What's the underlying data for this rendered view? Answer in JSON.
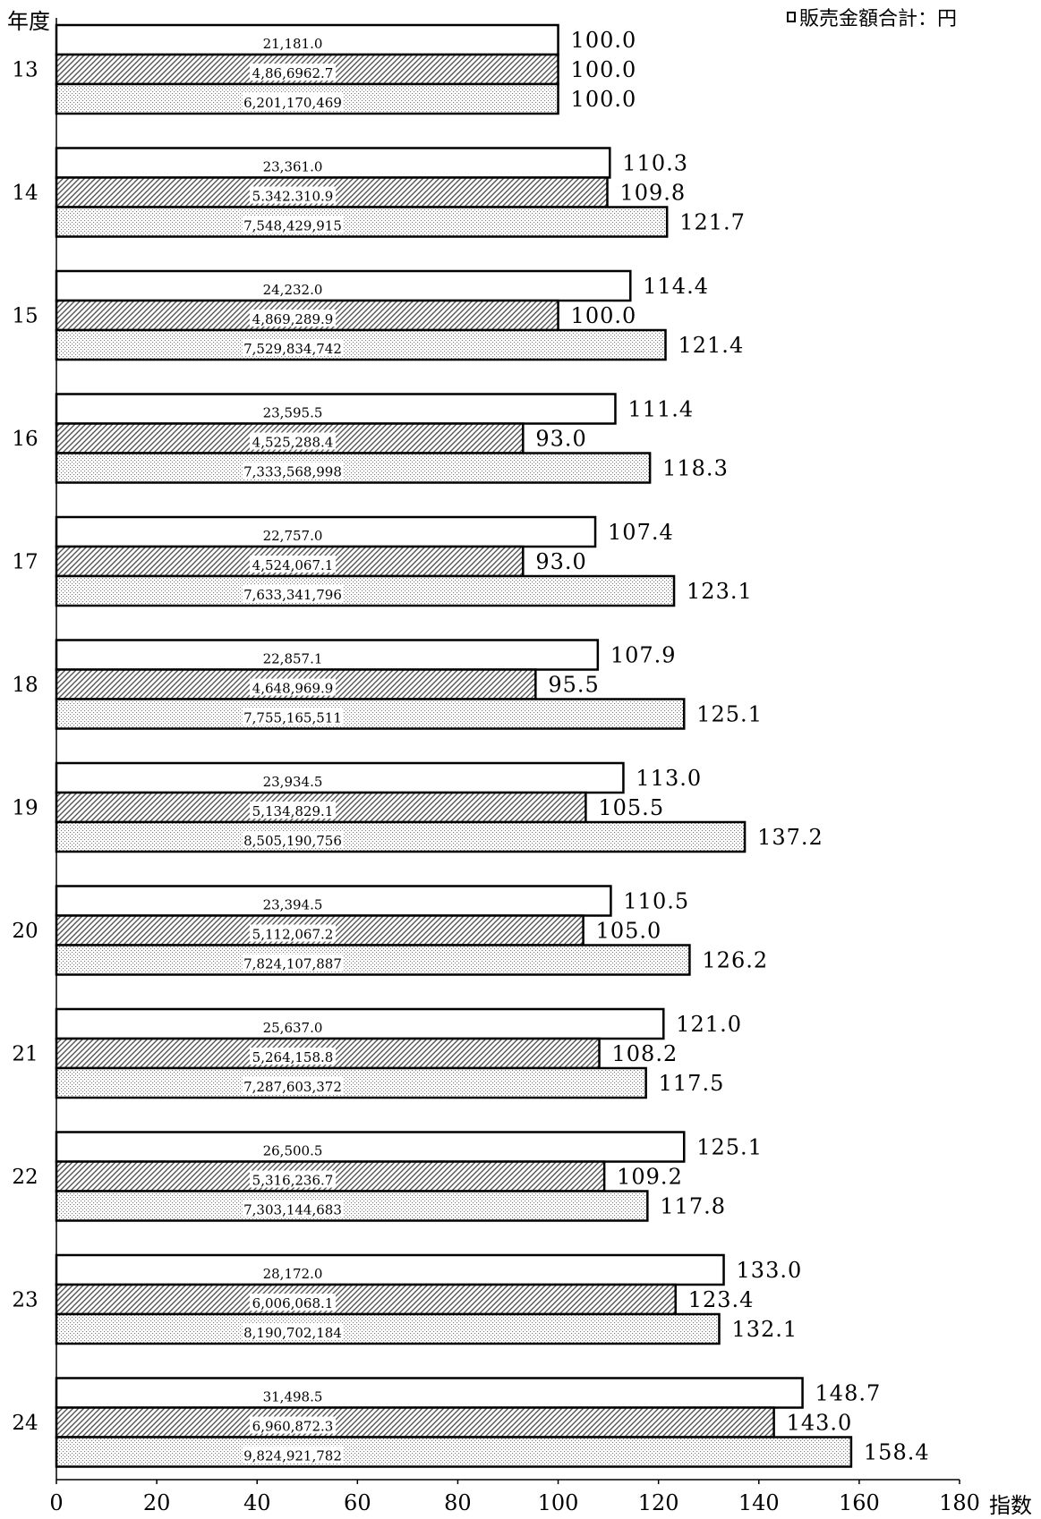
{
  "chart_data": {
    "type": "bar",
    "orientation": "horizontal",
    "title": "",
    "ylabel": "年度",
    "xlabel": "指数",
    "xlim": [
      0,
      180
    ],
    "xticks": [
      0,
      20,
      40,
      60,
      80,
      100,
      120,
      140,
      160,
      180
    ],
    "legend": {
      "position": "top-right",
      "entries": [
        "販売金額合計：円"
      ]
    },
    "categories": [
      "13",
      "14",
      "15",
      "16",
      "17",
      "18",
      "19",
      "20",
      "21",
      "22",
      "23",
      "24"
    ],
    "series": [
      {
        "fill": "white",
        "values": [
          100.0,
          110.3,
          114.4,
          111.4,
          107.4,
          107.9,
          113.0,
          110.5,
          121.0,
          125.1,
          133.0,
          148.7
        ],
        "value_labels": [
          "100.0",
          "110.3",
          "114.4",
          "111.4",
          "107.4",
          "107.9",
          "113.0",
          "110.5",
          "121.0",
          "125.1",
          "133.0",
          "148.7"
        ],
        "inner_labels": [
          "21,181.0",
          "23,361.0",
          "24,232.0",
          "23,595.5",
          "22,757.0",
          "22,857.1",
          "23,934.5",
          "23,394.5",
          "25,637.0",
          "26,500.5",
          "28,172.0",
          "31,498.5"
        ]
      },
      {
        "fill": "diagonal-hatch",
        "values": [
          100.0,
          109.8,
          100.0,
          93.0,
          93.0,
          95.5,
          105.5,
          105.0,
          108.2,
          109.2,
          123.4,
          143.0
        ],
        "value_labels": [
          "100.0",
          "109.8",
          "100.0",
          "93.0",
          "93.0",
          "95.5",
          "105.5",
          "105.0",
          "108.2",
          "109.2",
          "123.4",
          "143.0"
        ],
        "inner_labels": [
          "4,86,6962.7",
          "5.342.310.9",
          "4,869,289.9",
          "4,525,288.4",
          "4,524,067.1",
          "4,648,969.9",
          "5,134,829.1",
          "5,112,067.2",
          "5,264,158.8",
          "5,316,236.7",
          "6,006,068.1",
          "6,960,872.3"
        ]
      },
      {
        "fill": "dotted",
        "values": [
          100.0,
          121.7,
          121.4,
          118.3,
          123.1,
          125.1,
          137.2,
          126.2,
          117.5,
          117.8,
          132.1,
          158.4
        ],
        "value_labels": [
          "100.0",
          "121.7",
          "121.4",
          "118.3",
          "123.1",
          "125.1",
          "137.2",
          "126.2",
          "117.5",
          "117.8",
          "132.1",
          "158.4"
        ],
        "inner_labels": [
          "6,201,170,469",
          "7,548,429,915",
          "7,529,834,742",
          "7,333,568,998",
          "7,633,341,796",
          "7,755,165,511",
          "8,505,190,756",
          "7,824,107,887",
          "7,287,603,372",
          "7,303,144,683",
          "8,190,702,184",
          "9,824,921,782"
        ]
      }
    ],
    "colors": {
      "bar_stroke": "#000000",
      "background": "#ffffff",
      "hatch": "#555555",
      "dots": "#777777"
    }
  }
}
